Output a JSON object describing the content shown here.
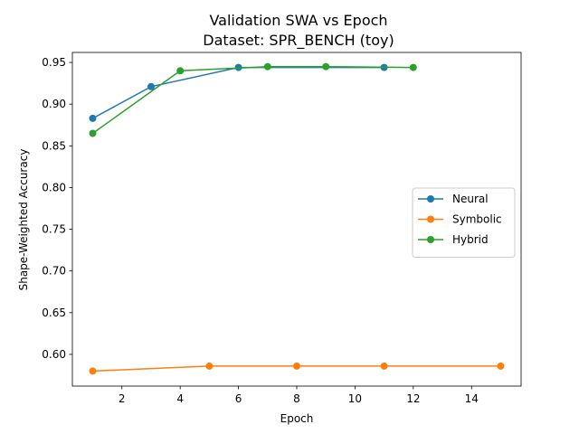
{
  "chart_data": {
    "type": "line",
    "title": "Validation SWA vs Epoch",
    "subtitle": "Dataset: SPR_BENCH (toy)",
    "xlabel": "Epoch",
    "ylabel": "Shape-Weighted Accuracy",
    "xlim": [
      0.3,
      15.7
    ],
    "ylim": [
      0.562,
      0.962
    ],
    "xticks": [
      2,
      4,
      6,
      8,
      10,
      12,
      14
    ],
    "yticks": [
      0.6,
      0.65,
      0.7,
      0.75,
      0.8,
      0.85,
      0.9,
      0.95
    ],
    "grid": false,
    "legend_position": "center-right",
    "series": [
      {
        "name": "Neural",
        "color": "#1f77b4",
        "x": [
          1,
          3,
          6,
          11
        ],
        "y": [
          0.883,
          0.921,
          0.944,
          0.944
        ]
      },
      {
        "name": "Symbolic",
        "color": "#ff7f0e",
        "x": [
          1,
          5,
          8,
          11,
          15
        ],
        "y": [
          0.58,
          0.586,
          0.586,
          0.586,
          0.586
        ]
      },
      {
        "name": "Hybrid",
        "color": "#2ca02c",
        "x": [
          1,
          4,
          7,
          9,
          12
        ],
        "y": [
          0.865,
          0.94,
          0.945,
          0.945,
          0.944
        ]
      }
    ]
  }
}
